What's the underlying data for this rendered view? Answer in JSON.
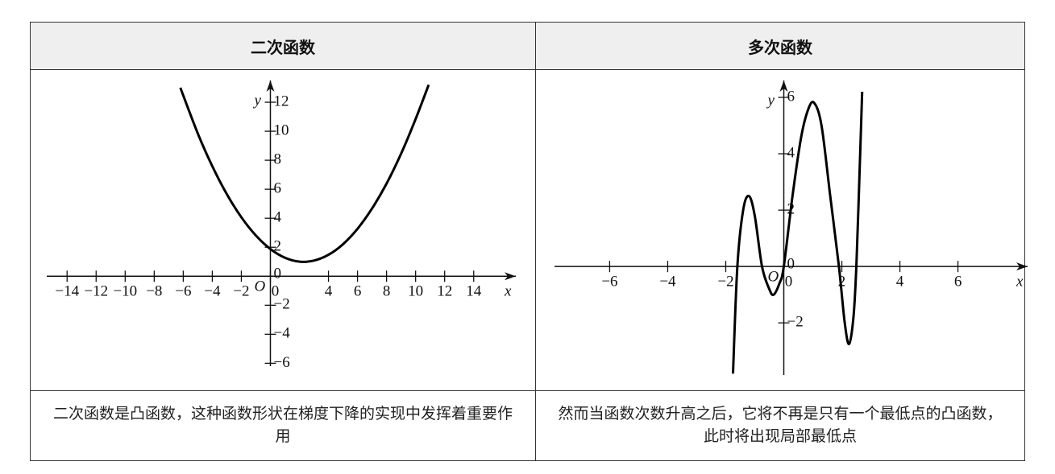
{
  "table": {
    "headers": [
      "二次函数",
      "多次函数"
    ],
    "captions": [
      "二次函数是凸函数，这种函数形状在梯度下降的实现中发挥着重要作用",
      "然而当函数次数升高之后，它将不再是只有一个最低点的凸函数，此时将出现局部最低点"
    ]
  },
  "chart_data": [
    {
      "type": "line",
      "x_label": "x",
      "y_label": "y",
      "origin_label": "O",
      "xlim": [
        -15.4,
        16.9
      ],
      "ylim": [
        -6.2,
        13.5
      ],
      "xticks": [
        {
          "value": -14,
          "label": "−14"
        },
        {
          "value": -12,
          "label": "−12"
        },
        {
          "value": -10,
          "label": "−10"
        },
        {
          "value": -8,
          "label": "−8"
        },
        {
          "value": -6,
          "label": "−6"
        },
        {
          "value": -4,
          "label": "−4"
        },
        {
          "value": -2,
          "label": "−2"
        },
        0,
        4,
        6,
        8,
        10,
        12,
        14
      ],
      "yticks": [
        {
          "value": -6,
          "label": "−6"
        },
        {
          "value": -4,
          "label": "−4"
        },
        {
          "value": -2,
          "label": "−2"
        },
        0,
        2,
        4,
        6,
        8,
        10,
        12
      ],
      "x": [
        -6.2,
        -5,
        -4,
        -3,
        -2,
        -1,
        0,
        1,
        2,
        3,
        4,
        5,
        6,
        7,
        8,
        9,
        10,
        10.9
      ],
      "series": [
        {
          "color": "#000000",
          "values": [
            13.0,
            9.85,
            7.59,
            5.66,
            4.07,
            2.81,
            1.88,
            1.28,
            1.01,
            1.08,
            1.48,
            2.21,
            3.27,
            4.67,
            6.39,
            8.45,
            10.84,
            13.2
          ]
        }
      ]
    },
    {
      "type": "line",
      "x_label": "x",
      "y_label": "y",
      "origin_label": "O",
      "xlim": [
        -7.9,
        8.4
      ],
      "ylim": [
        -3.85,
        6.6
      ],
      "xticks": [
        {
          "value": -6,
          "label": "−6"
        },
        {
          "value": -4,
          "label": "−4"
        },
        {
          "value": -2,
          "label": "−2"
        },
        0,
        2,
        4,
        6
      ],
      "yticks": [
        {
          "value": -2,
          "label": "−2"
        },
        0,
        2,
        4,
        6
      ],
      "x": [
        -1.75,
        -1.6,
        -1.4,
        -1.2,
        -1.0,
        -0.75,
        -0.5,
        -0.35,
        -0.15,
        0,
        0.3,
        0.6,
        0.85,
        1.05,
        1.3,
        1.6,
        1.9,
        2.1,
        2.25,
        2.4,
        2.5,
        2.6,
        2.7
      ],
      "series": [
        {
          "color": "#000000",
          "values": [
            -3.8,
            0,
            2.0,
            2.5,
            1.8,
            0,
            -0.8,
            -1.0,
            -0.6,
            0,
            2.5,
            4.6,
            5.6,
            5.8,
            5.0,
            2.5,
            0,
            -2.0,
            -2.75,
            -1.8,
            0,
            3.0,
            6.2
          ]
        }
      ]
    }
  ]
}
